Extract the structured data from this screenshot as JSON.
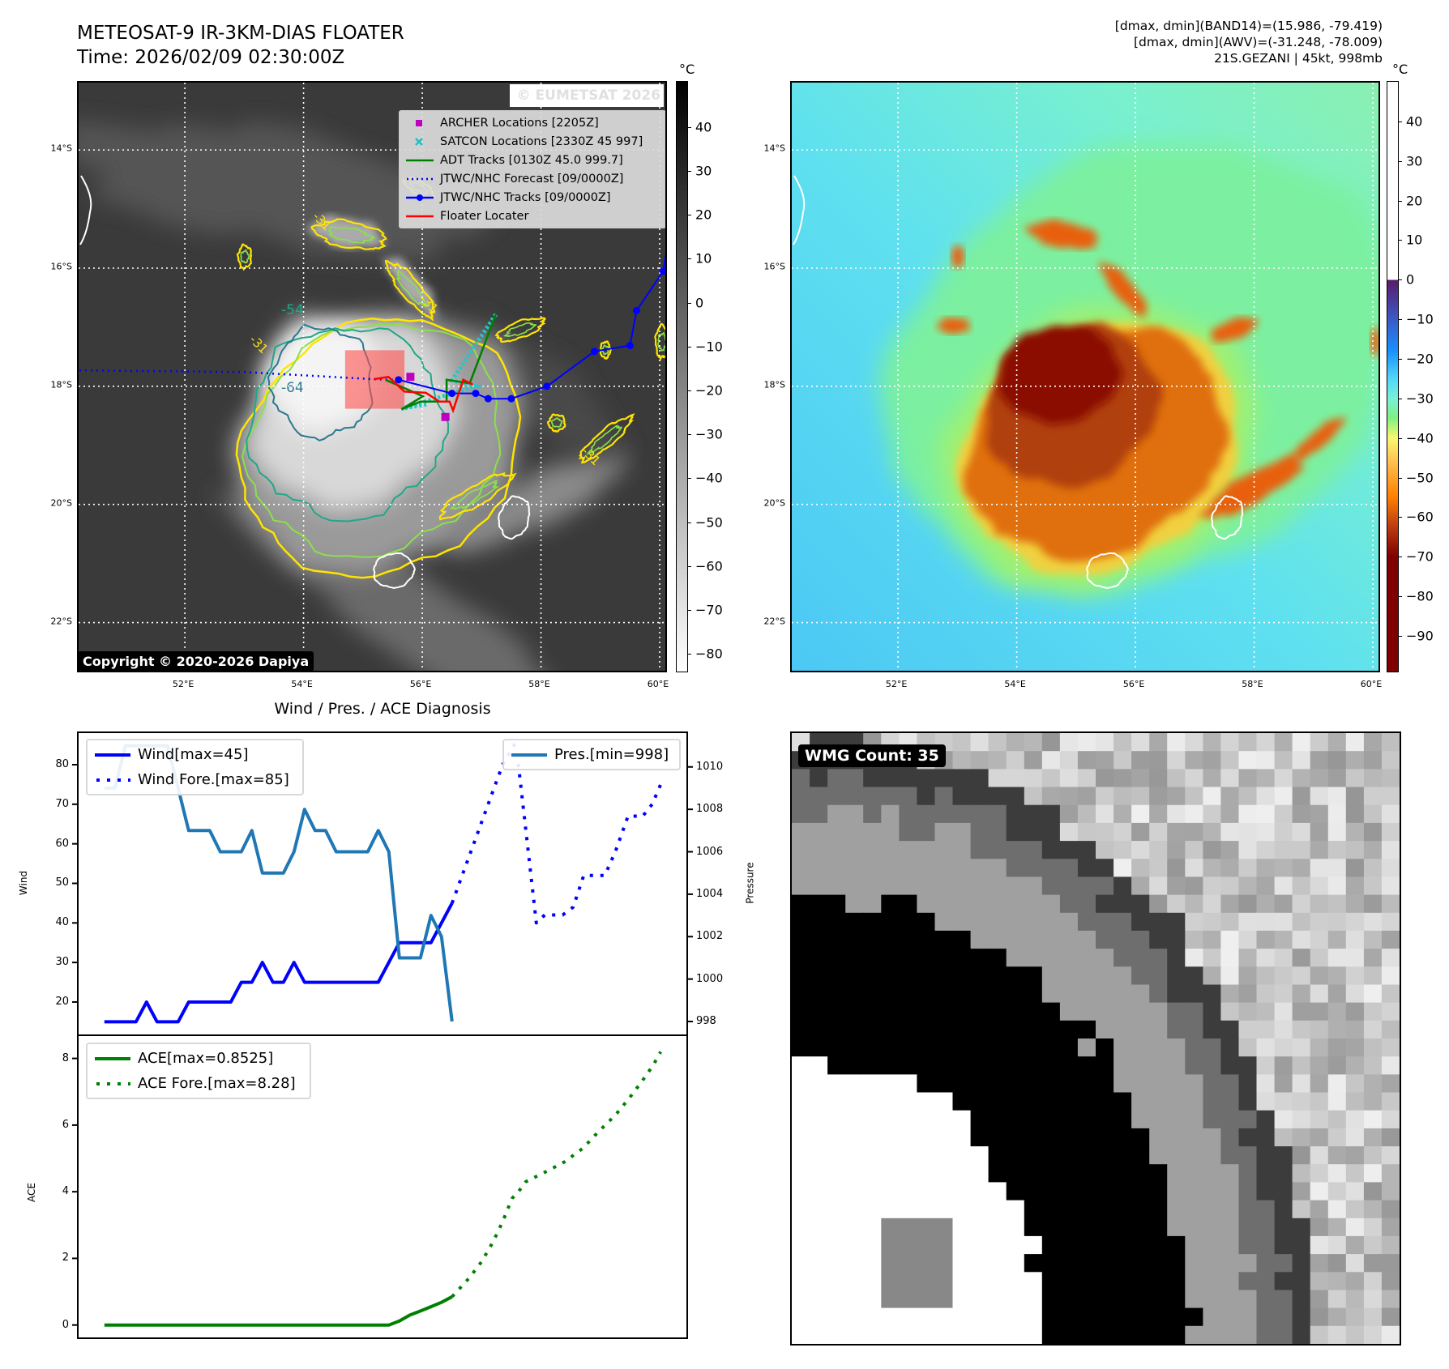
{
  "header": {
    "title_line1": "METEOSAT-9 IR-3KM-DIAS FLOATER",
    "title_line2": "Time: 2026/02/09 02:30:00Z",
    "info_line1": "[dmax, dmin](BAND14)=(15.986, -79.419)",
    "info_line2": "[dmax, dmin](AWV)=(-31.248, -78.009)",
    "info_line3": "21S.GEZANI | 45kt, 998mb"
  },
  "map": {
    "lon_range": [
      50.21,
      60.15
    ],
    "lat_range": [
      12.86,
      22.87
    ],
    "lon_ticks": [
      {
        "v": 52,
        "label": "52°E"
      },
      {
        "v": 54,
        "label": "54°E"
      },
      {
        "v": 56,
        "label": "56°E"
      },
      {
        "v": 58,
        "label": "58°E"
      },
      {
        "v": 60,
        "label": "60°E"
      }
    ],
    "lat_ticks": [
      {
        "v": 14,
        "label": "14°S"
      },
      {
        "v": 16,
        "label": "16°S"
      },
      {
        "v": 18,
        "label": "18°S"
      },
      {
        "v": 20,
        "label": "20°S"
      },
      {
        "v": 22,
        "label": "22°S"
      }
    ],
    "watermark": "© EUMETSAT 2026",
    "copyright": "Copyright © 2020-2026 Dapiya",
    "contour_labels": [
      "-31",
      "-54",
      "-64"
    ],
    "legend": [
      {
        "label": "ARCHER Locations [2205Z]",
        "color": "#c000c0",
        "icon": "square-marker"
      },
      {
        "label": "SATCON Locations [2330Z 45 997]",
        "color": "#20c0c0",
        "icon": "x-marker"
      },
      {
        "label": "ADT Tracks [0130Z 45.0 999.7]",
        "color": "#008000",
        "icon": "line"
      },
      {
        "label": "JTWC/NHC Forecast [09/0000Z]",
        "color": "#0000ff",
        "icon": "dotted-line"
      },
      {
        "label": "JTWC/NHC Tracks [09/0000Z]",
        "color": "#0000ff",
        "icon": "line-dot"
      },
      {
        "label": "Floater Locater",
        "color": "#ff0000",
        "icon": "line"
      }
    ],
    "tracks": {
      "jtwc": [
        [
          55.6,
          17.89
        ],
        [
          56.5,
          18.12
        ],
        [
          56.9,
          18.12
        ],
        [
          57.11,
          18.21
        ],
        [
          57.5,
          18.21
        ],
        [
          58.1,
          18.0
        ],
        [
          58.9,
          17.41
        ],
        [
          59.5,
          17.31
        ],
        [
          59.61,
          16.72
        ],
        [
          60.06,
          16.05
        ],
        [
          60.2,
          15.2
        ]
      ],
      "jtwc_forecast": [
        [
          55.6,
          17.89
        ],
        [
          55.18,
          17.88
        ],
        [
          53.0,
          17.76
        ],
        [
          50.2,
          17.73
        ]
      ],
      "adt": [
        [
          55.38,
          17.89
        ],
        [
          56.01,
          18.17
        ],
        [
          55.65,
          18.39
        ],
        [
          55.97,
          18.26
        ],
        [
          56.41,
          18.26
        ],
        [
          56.41,
          17.89
        ],
        [
          56.8,
          17.95
        ],
        [
          57.24,
          16.78
        ]
      ],
      "floater": [
        [
          55.18,
          17.88
        ],
        [
          55.43,
          17.84
        ],
        [
          55.7,
          18.09
        ],
        [
          56.06,
          18.11
        ],
        [
          56.29,
          18.26
        ],
        [
          56.46,
          18.26
        ],
        [
          56.52,
          18.41
        ],
        [
          56.69,
          17.89
        ],
        [
          56.85,
          17.97
        ]
      ],
      "floater_box": [
        [
          54.7,
          17.39
        ],
        [
          55.7,
          18.38
        ]
      ],
      "archer": [
        [
          55.8,
          17.84
        ],
        [
          56.39,
          18.52
        ]
      ],
      "satcon": [
        [
          57.24,
          16.78
        ],
        [
          56.5,
          17.9
        ],
        [
          56.9,
          18.0
        ],
        [
          55.65,
          18.38
        ],
        [
          56.1,
          18.3
        ]
      ]
    }
  },
  "colorbar_ir": {
    "unit": "°C",
    "range": [
      50.5,
      -84.2
    ],
    "ticks": [
      "40",
      "30",
      "20",
      "10",
      "0",
      "−10",
      "−20",
      "−30",
      "−40",
      "−50",
      "−60",
      "−70",
      "−80"
    ],
    "tick_values": [
      40,
      30,
      20,
      10,
      0,
      -10,
      -20,
      -30,
      -40,
      -50,
      -60,
      -70,
      -80
    ]
  },
  "colorbar_awv": {
    "unit": "°C",
    "range": [
      50.2,
      -99.2
    ],
    "ticks": [
      "40",
      "30",
      "20",
      "10",
      "0",
      "−10",
      "−20",
      "−30",
      "−40",
      "−50",
      "−60",
      "−70",
      "−80",
      "−90"
    ],
    "tick_values": [
      40,
      30,
      20,
      10,
      0,
      -10,
      -20,
      -30,
      -40,
      -50,
      -60,
      -70,
      -80,
      -90
    ]
  },
  "chart_data": [
    {
      "type": "line",
      "title": "Wind / Pres. / ACE Diagnosis",
      "ylabel": "Wind",
      "ylabel_right": "Pressure",
      "ylim": [
        11.8,
        88.4
      ],
      "ylim_right": [
        997.39,
        1011.67
      ],
      "xlim": [
        -2.6,
        55.4
      ],
      "yticks": [
        20,
        30,
        40,
        50,
        60,
        70,
        80
      ],
      "yticks_right": [
        998,
        1000,
        1002,
        1004,
        1006,
        1008,
        1010
      ],
      "series": [
        {
          "name": "Wind[max=45]",
          "color": "#0000ff",
          "style": "solid",
          "values": [
            15,
            15,
            15,
            15,
            20,
            15,
            15,
            15,
            20,
            20,
            20,
            20,
            20,
            25,
            25,
            30,
            25,
            25,
            30,
            25,
            25,
            25,
            25,
            25,
            25,
            25,
            25,
            30,
            35,
            35,
            35,
            35,
            40,
            45
          ]
        },
        {
          "name": "Wind Fore.[max=85]",
          "color": "#0000ff",
          "style": "dotted",
          "points": [
            [
              33,
              45
            ],
            [
              37.8,
              80
            ],
            [
              38.9,
              85
            ],
            [
              39.3,
              80
            ],
            [
              41.0,
              40
            ],
            [
              41.8,
              42
            ],
            [
              43.5,
              42
            ],
            [
              44.5,
              44
            ],
            [
              45.5,
              52
            ],
            [
              47.5,
              52
            ],
            [
              48.5,
              58
            ],
            [
              49.7,
              67
            ],
            [
              51.1,
              67
            ],
            [
              52.0,
              70
            ],
            [
              52.8,
              75
            ]
          ]
        },
        {
          "name": "Pres.[min=998]",
          "color": "#1f77b4",
          "style": "solid",
          "axis": "right",
          "values": [
            1009,
            1009,
            1011,
            1011,
            1011,
            1011,
            1011,
            1009,
            1007,
            1007,
            1007,
            1006,
            1006,
            1006,
            1007,
            1005,
            1005,
            1005,
            1006,
            1008,
            1007,
            1007,
            1006,
            1006,
            1006,
            1006,
            1007,
            1006,
            1001,
            1001,
            1001,
            1003,
            1002,
            998
          ]
        }
      ]
    },
    {
      "type": "line",
      "ylabel": "ACE",
      "ylim": [
        -0.42,
        8.72
      ],
      "xlim": [
        -2.6,
        55.4
      ],
      "yticks": [
        0,
        2,
        4,
        6,
        8
      ],
      "series": [
        {
          "name": "ACE[max=0.8525]",
          "color": "#008000",
          "style": "solid",
          "values": [
            0,
            0,
            0,
            0,
            0,
            0,
            0,
            0,
            0,
            0,
            0,
            0,
            0,
            0,
            0,
            0,
            0,
            0,
            0,
            0,
            0,
            0,
            0,
            0,
            0,
            0,
            0,
            0,
            0.12,
            0.3,
            0.42,
            0.55,
            0.68,
            0.85
          ]
        },
        {
          "name": "ACE Fore.[max=8.28]",
          "color": "#008000",
          "style": "dotted",
          "points": [
            [
              33,
              0.85
            ],
            [
              34.6,
              1.4
            ],
            [
              35.8,
              1.9
            ],
            [
              36.9,
              2.5
            ],
            [
              37.8,
              3.1
            ],
            [
              38.7,
              3.8
            ],
            [
              39.3,
              4.0
            ],
            [
              40,
              4.3
            ],
            [
              41.9,
              4.6
            ],
            [
              43.7,
              4.9
            ],
            [
              45.4,
              5.3
            ],
            [
              46.9,
              5.8
            ],
            [
              48.5,
              6.3
            ],
            [
              49.8,
              6.8
            ],
            [
              51,
              7.3
            ],
            [
              52.1,
              7.8
            ],
            [
              52.8,
              8.2
            ]
          ]
        }
      ]
    }
  ],
  "wmg": {
    "label": "WMG Count: 35"
  }
}
